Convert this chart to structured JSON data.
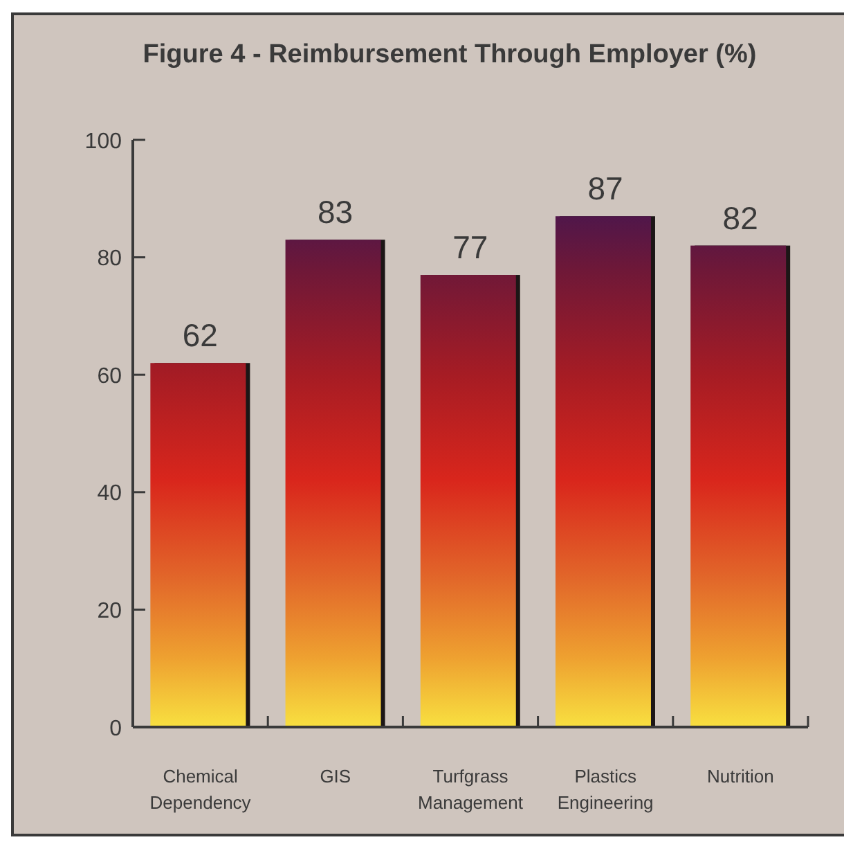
{
  "chart_data": {
    "type": "bar",
    "title": "Figure 4 - Reimbursement Through Employer (%)",
    "categories": [
      "Chemical Dependency",
      "GIS",
      "Turfgrass Management",
      "Plastics Engineering",
      "Nutrition"
    ],
    "values": [
      62,
      83,
      77,
      87,
      82
    ],
    "color": "#d9261c",
    "ylim": [
      0,
      100
    ],
    "yticks": [
      0,
      20,
      40,
      60,
      80,
      100
    ],
    "data_labels": true
  }
}
